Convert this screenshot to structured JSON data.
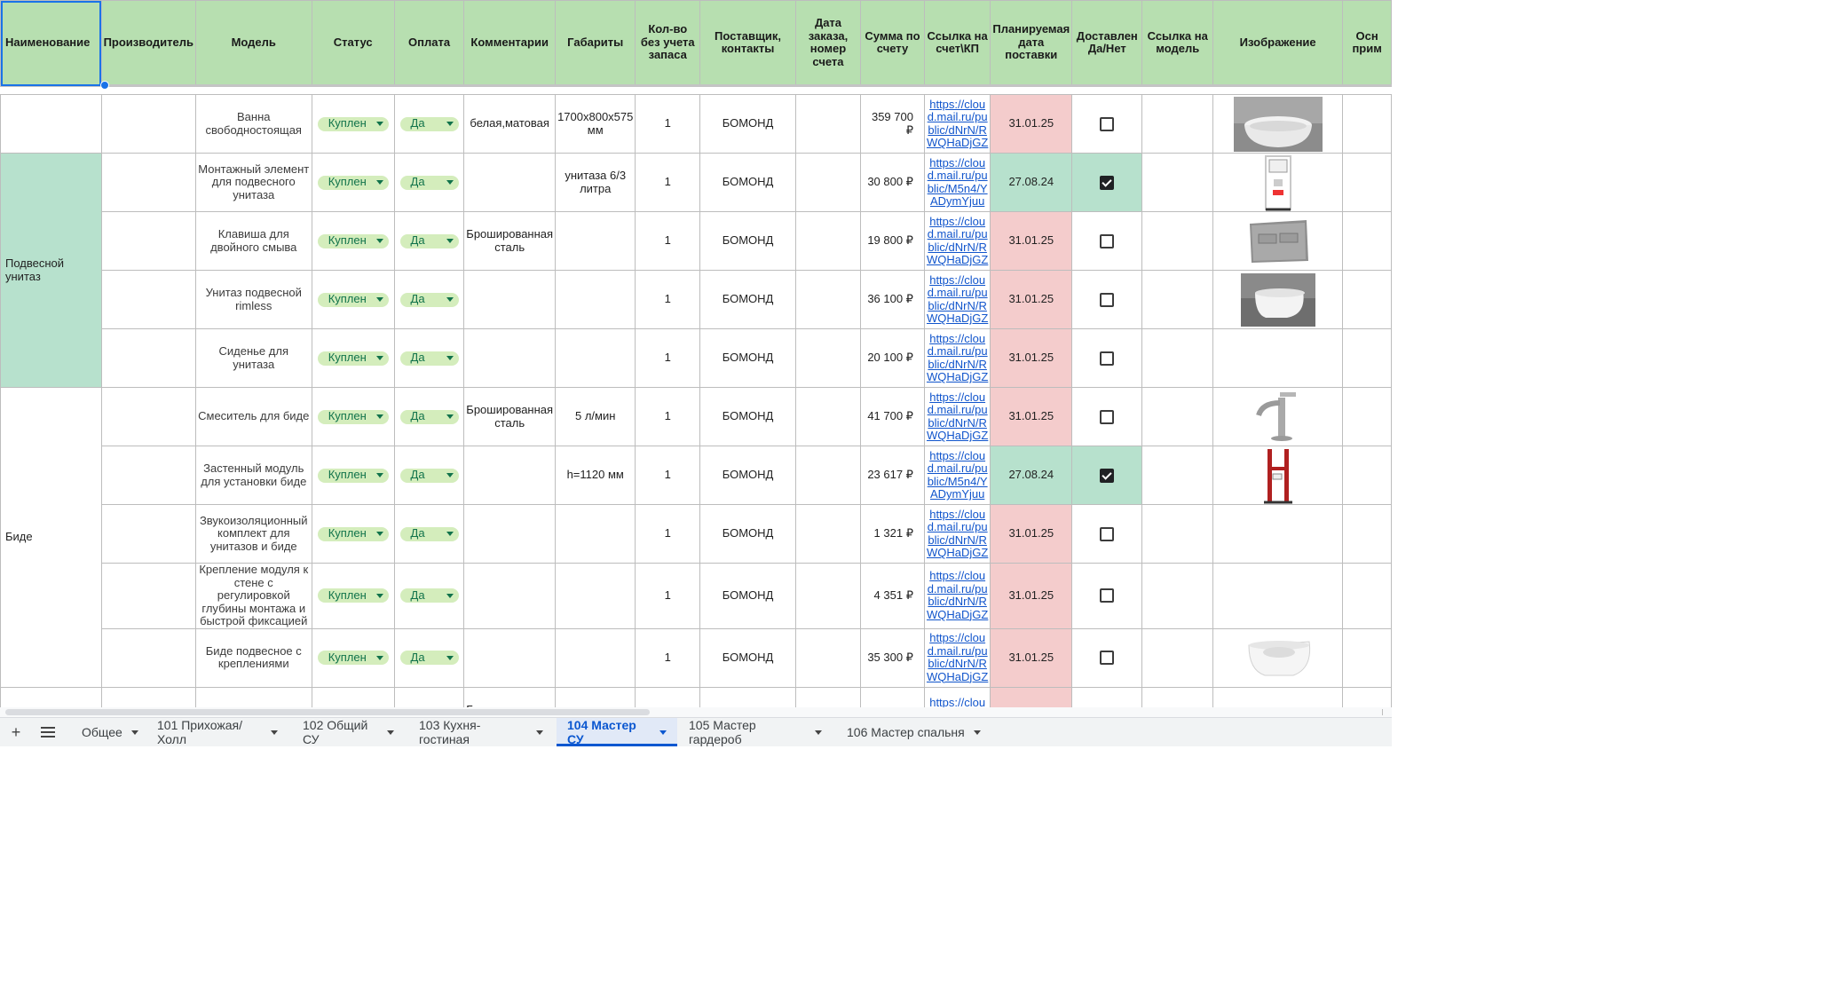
{
  "headers": [
    "Наименование",
    "Производитель",
    "Модель",
    "Статус",
    "Оплата",
    "Комментарии",
    "Габариты",
    "Кол-во без учета запаса",
    "Поставщик, контакты",
    "Дата заказа, номер счета",
    "Сумма по счету",
    "Ссылка на счет\\КП",
    "Планируемая дата поставки",
    "Доставлен Да/Нет",
    "Ссылка на модель",
    "Изображение",
    "Осн прим"
  ],
  "categories": [
    "Подвесной унитаз",
    "Биде"
  ],
  "rows": [
    {
      "model": "Ванна свободностоящая",
      "status": "Куплен",
      "pay": "Да",
      "comment": "белая,матовая",
      "size": "1700x800x575 мм",
      "qty": "1",
      "supplier": "БОМОНД",
      "order": "",
      "sum": "359 700 ₽",
      "link": "https://cloud.mail.ru/public/dNrN/RWQHaDjGZ",
      "date": "31.01.25",
      "date_color": "red",
      "delivered": false,
      "image_icon": "bathtub-image"
    },
    {
      "model": "Монтажный элемент для подвесного унитаза",
      "status": "Куплен",
      "pay": "Да",
      "comment": "",
      "size": "унитаза 6/3 литра",
      "qty": "1",
      "supplier": "БОМОНД",
      "order": "",
      "sum": "30 800 ₽",
      "link": "https://cloud.mail.ru/public/M5n4/YADymYjuu",
      "date": "27.08.24",
      "date_color": "green",
      "delivered": true,
      "image_icon": "installation-frame-image"
    },
    {
      "model": "Клавиша для двойного смыва",
      "status": "Куплен",
      "pay": "Да",
      "comment": "Брошированная сталь",
      "size": "",
      "qty": "1",
      "supplier": "БОМОНД",
      "order": "",
      "sum": "19 800 ₽",
      "link": "https://cloud.mail.ru/public/dNrN/RWQHaDjGZ",
      "date": "31.01.25",
      "date_color": "red",
      "delivered": false,
      "image_icon": "flush-plate-image"
    },
    {
      "model": "Унитаз подвесной rimless",
      "status": "Куплен",
      "pay": "Да",
      "comment": "",
      "size": "",
      "qty": "1",
      "supplier": "БОМОНД",
      "order": "",
      "sum": "36 100 ₽",
      "link": "https://cloud.mail.ru/public/dNrN/RWQHaDjGZ",
      "date": "31.01.25",
      "date_color": "red",
      "delivered": false,
      "image_icon": "toilet-image"
    },
    {
      "model": "Сиденье для унитаза",
      "status": "Куплен",
      "pay": "Да",
      "comment": "",
      "size": "",
      "qty": "1",
      "supplier": "БОМОНД",
      "order": "",
      "sum": "20 100 ₽",
      "link": "https://cloud.mail.ru/public/dNrN/RWQHaDjGZ",
      "date": "31.01.25",
      "date_color": "red",
      "delivered": false,
      "image_icon": ""
    },
    {
      "model": "Смеситель для биде",
      "status": "Куплен",
      "pay": "Да",
      "comment": "Брошированная сталь",
      "size": "5 л/мин",
      "qty": "1",
      "supplier": "БОМОНД",
      "order": "",
      "sum": "41 700 ₽",
      "link": "https://cloud.mail.ru/public/dNrN/RWQHaDjGZ",
      "date": "31.01.25",
      "date_color": "red",
      "delivered": false,
      "image_icon": "faucet-image"
    },
    {
      "model": "Застенный модуль для установки биде",
      "status": "Куплен",
      "pay": "Да",
      "comment": "",
      "size": "h=1120 мм",
      "qty": "1",
      "supplier": "БОМОНД",
      "order": "",
      "sum": "23 617 ₽",
      "link": "https://cloud.mail.ru/public/M5n4/YADymYjuu",
      "date": "27.08.24",
      "date_color": "green",
      "delivered": true,
      "image_icon": "bidet-frame-image"
    },
    {
      "model": "Звукоизоляционный комплект для унитазов и биде",
      "status": "Куплен",
      "pay": "Да",
      "comment": "",
      "size": "",
      "qty": "1",
      "supplier": "БОМОНД",
      "order": "",
      "sum": "1 321 ₽",
      "link": "https://cloud.mail.ru/public/dNrN/RWQHaDjGZ",
      "date": "31.01.25",
      "date_color": "red",
      "delivered": false,
      "image_icon": ""
    },
    {
      "model": "Крепление модуля к стене с регулировкой глубины монтажа и быстрой фиксацией",
      "status": "Куплен",
      "pay": "Да",
      "comment": "",
      "size": "",
      "qty": "1",
      "supplier": "БОМОНД",
      "order": "",
      "sum": "4 351 ₽",
      "link": "https://cloud.mail.ru/public/dNrN/RWQHaDjGZ",
      "date": "31.01.25",
      "date_color": "red",
      "delivered": false,
      "image_icon": ""
    },
    {
      "model": "Биде подвесное с креплениями",
      "status": "Куплен",
      "pay": "Да",
      "comment": "",
      "size": "",
      "qty": "1",
      "supplier": "БОМОНД",
      "order": "",
      "sum": "35 300 ₽",
      "link": "https://cloud.mail.ru/public/dNrN/RWQHaDjGZ",
      "date": "31.01.25",
      "date_color": "red",
      "delivered": false,
      "image_icon": "bidet-image"
    },
    {
      "model": "",
      "status": "",
      "pay": "",
      "comment": "Брошированная сталь",
      "size": "",
      "qty": "",
      "supplier": "",
      "order": "",
      "sum": "",
      "link": "https://cloud.mail.ru/public/",
      "date": "",
      "date_color": "red",
      "delivered": null,
      "image_icon": "shower-image"
    }
  ],
  "tabbar": {
    "add_icon": "plus-icon",
    "list_icon": "menu-icon",
    "tabs": [
      {
        "label": "Общее",
        "active": false
      },
      {
        "label": "101 Прихожая/Холл",
        "active": false
      },
      {
        "label": "102 Общий СУ",
        "active": false
      },
      {
        "label": "103 Кухня-гостиная",
        "active": false
      },
      {
        "label": "104 Мастер СУ",
        "active": true
      },
      {
        "label": "105 Мастер гардероб",
        "active": false
      },
      {
        "label": "106 Мастер спальня",
        "active": false
      }
    ]
  },
  "colors": {
    "header_bg": "#b7dfb0",
    "category_bg": "#b7e1cd",
    "date_late_bg": "#f4cccc",
    "date_ok_bg": "#b7e1cd",
    "chip_bg": "#d4edbc",
    "chip_text": "#11734b",
    "link": "#1155cc",
    "active_tab": "#0b57d0"
  }
}
